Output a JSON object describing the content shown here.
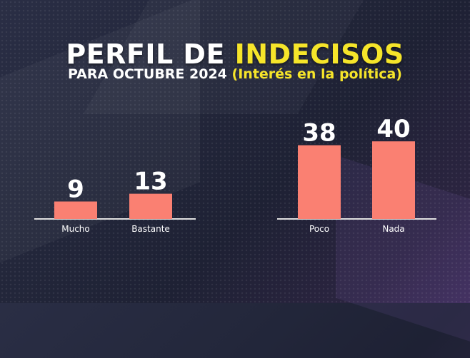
{
  "title": {
    "main": "PERFIL DE",
    "highlight": "INDECISOS"
  },
  "subtitle": {
    "main": "PARA OCTUBRE 2024",
    "highlight": "(Interés en la política)"
  },
  "colors": {
    "bar": "#fa8072",
    "accent": "#f6e52a",
    "text": "#ffffff",
    "axis": "#e0e0e0"
  },
  "chart_data": {
    "type": "bar",
    "categories": [
      "Mucho",
      "Bastante",
      "Poco",
      "Nada"
    ],
    "values": [
      9,
      13,
      38,
      40
    ],
    "title": "PERFIL DE INDECISOS",
    "subtitle": "PARA OCTUBRE 2024 (Interés en la política)",
    "xlabel": "",
    "ylabel": "",
    "ylim": [
      0,
      40
    ],
    "grid": false,
    "legend": "none"
  }
}
